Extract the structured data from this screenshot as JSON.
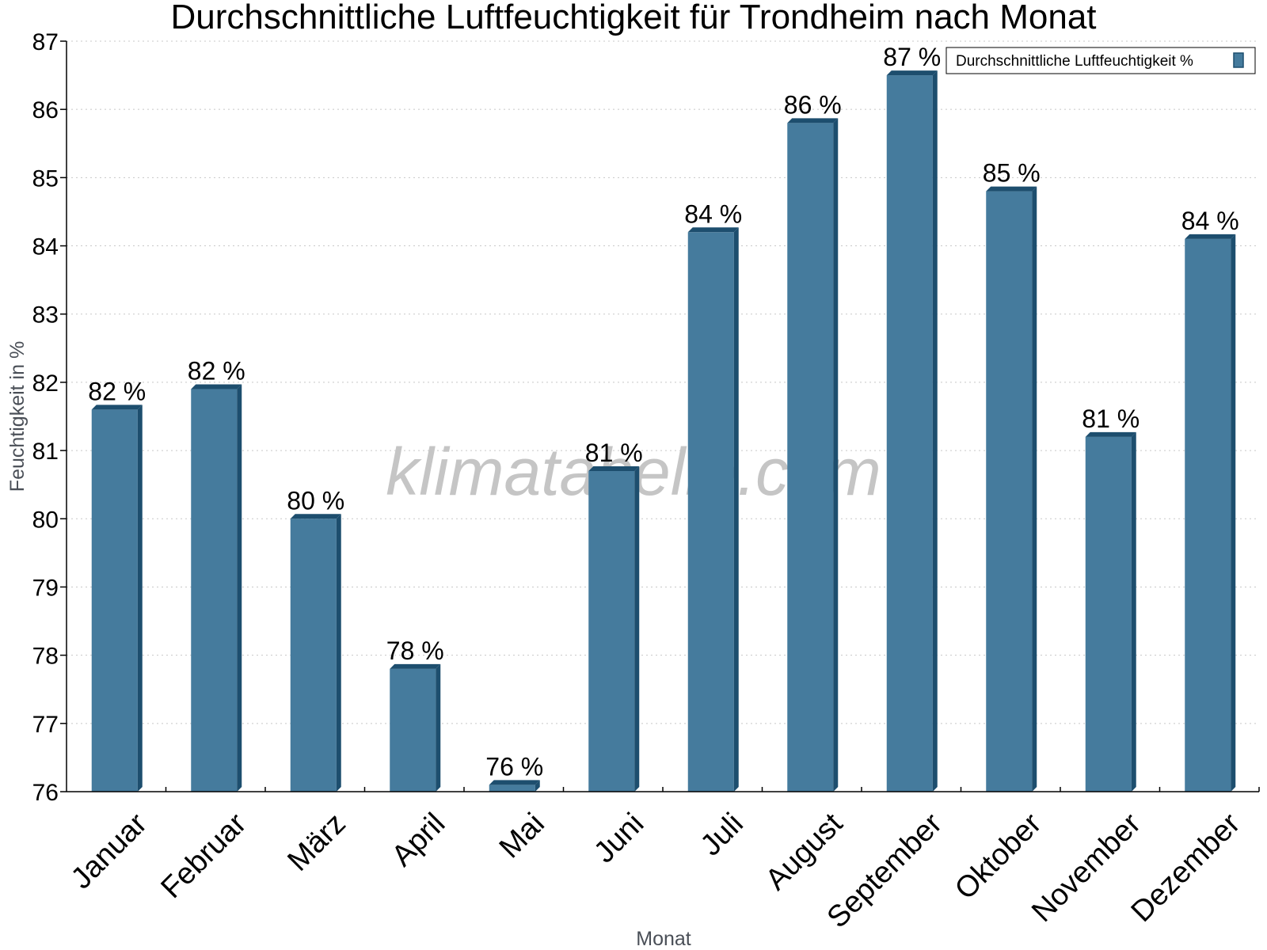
{
  "watermark": "klimatabelle.com",
  "colors": {
    "bar_front": "#457b9d",
    "bar_side": "#1d4e6e",
    "bar_top": "#1d4e6e",
    "grid": "#c8c8c8",
    "axis": "#000000"
  },
  "chart_data": {
    "type": "bar",
    "title": "Durchschnittliche Luftfeuchtigkeit für Trondheim nach Monat",
    "xlabel": "Monat",
    "ylabel": "Feuchtigkeit in %",
    "ylim": [
      76,
      87
    ],
    "yticks": [
      76,
      77,
      78,
      79,
      80,
      81,
      82,
      83,
      84,
      85,
      86,
      87
    ],
    "grid": true,
    "legend_position": "top-right",
    "categories": [
      "Januar",
      "Februar",
      "März",
      "April",
      "Mai",
      "Juni",
      "Juli",
      "August",
      "September",
      "Oktober",
      "November",
      "Dezember"
    ],
    "series": [
      {
        "name": "Durchschnittliche Luftfeuchtigkeit %",
        "values": [
          81.6,
          81.9,
          80.0,
          77.8,
          76.1,
          80.7,
          84.2,
          85.8,
          86.5,
          84.8,
          81.2,
          84.1
        ],
        "labels": [
          "82 %",
          "82 %",
          "80 %",
          "78 %",
          "76 %",
          "81 %",
          "84 %",
          "86 %",
          "87 %",
          "85 %",
          "81 %",
          "84 %"
        ]
      }
    ]
  }
}
